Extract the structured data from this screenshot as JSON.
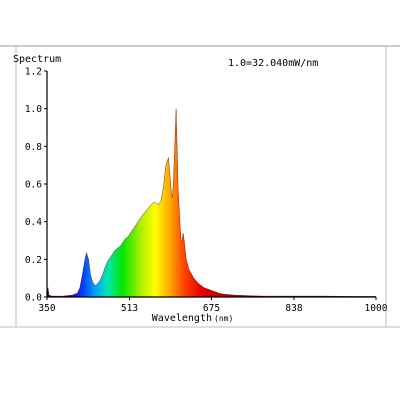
{
  "chart_data": {
    "type": "area",
    "title": "Spectrum",
    "scale_note": "1.0=32.040mW/nm",
    "xlabel": "Wavelength",
    "xunit": "(nm)",
    "ylabel": "",
    "xlim": [
      350,
      1000
    ],
    "ylim": [
      0,
      1.2
    ],
    "x_ticks": [
      350,
      513,
      675,
      838,
      1000
    ],
    "y_ticks": [
      0.0,
      0.2,
      0.4,
      0.6,
      0.8,
      1.0,
      1.2
    ],
    "y_tick_labels": [
      "0.0",
      "0.2",
      "0.4",
      "0.6",
      "0.8",
      "1.0",
      "1.2"
    ],
    "grid": false,
    "fill": "wavelength-color-gradient",
    "series": [
      {
        "x": [
          350,
          352,
          354,
          360,
          380,
          400,
          410,
          415,
          420,
          425,
          428,
          432,
          436,
          440,
          445,
          450,
          455,
          460,
          465,
          470,
          475,
          480,
          485,
          490,
          495,
          500,
          505,
          510,
          520,
          530,
          540,
          550,
          555,
          560,
          565,
          570,
          575,
          580,
          585,
          590,
          593,
          596,
          598,
          600,
          603,
          605,
          607,
          609,
          611,
          613,
          615,
          617,
          619,
          621,
          623,
          625,
          630,
          640,
          650,
          660,
          670,
          680,
          690,
          700,
          720,
          740,
          760,
          780,
          800,
          850,
          900,
          950,
          1000
        ],
        "y": [
          0.02,
          0.05,
          0.01,
          0.005,
          0.005,
          0.01,
          0.02,
          0.05,
          0.12,
          0.2,
          0.235,
          0.2,
          0.12,
          0.08,
          0.06,
          0.07,
          0.09,
          0.12,
          0.16,
          0.19,
          0.21,
          0.23,
          0.25,
          0.26,
          0.27,
          0.29,
          0.31,
          0.32,
          0.36,
          0.4,
          0.44,
          0.47,
          0.49,
          0.5,
          0.5,
          0.49,
          0.51,
          0.58,
          0.7,
          0.74,
          0.64,
          0.55,
          0.53,
          0.62,
          0.85,
          1.0,
          0.8,
          0.58,
          0.48,
          0.38,
          0.3,
          0.3,
          0.34,
          0.3,
          0.25,
          0.2,
          0.15,
          0.1,
          0.07,
          0.05,
          0.04,
          0.03,
          0.02,
          0.015,
          0.01,
          0.008,
          0.006,
          0.005,
          0.005,
          0.005,
          0.005,
          0.003,
          0.003
        ]
      }
    ]
  }
}
